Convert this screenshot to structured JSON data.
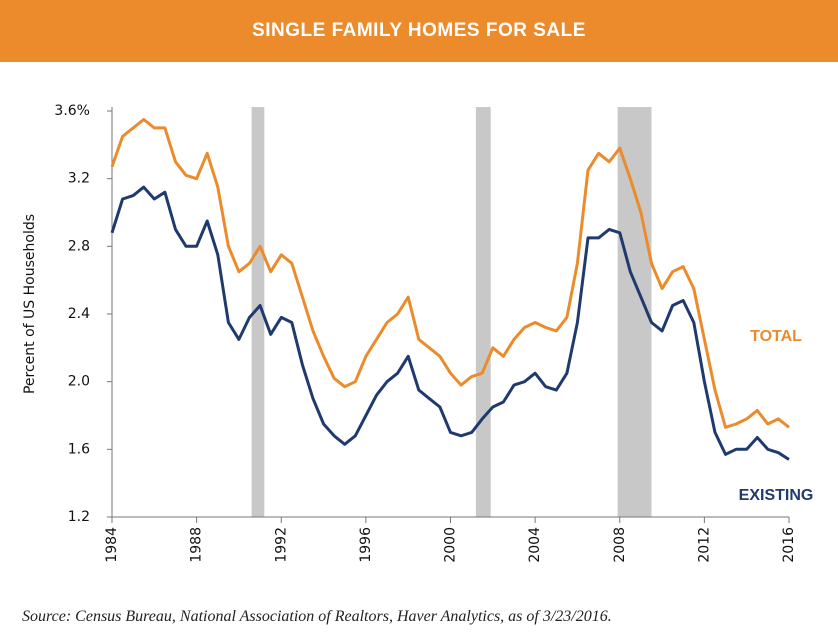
{
  "chart_data": {
    "type": "line",
    "title": "SINGLE FAMILY HOMES FOR SALE",
    "y_label": "Percent of US Households",
    "source": "Source: Census Bureau, National Association of Realtors, Haver Analytics, as of 3/23/2016.",
    "xlim": [
      1984,
      2016
    ],
    "xticks": [
      1984,
      1988,
      1992,
      1996,
      2000,
      2004,
      2008,
      2012,
      2016
    ],
    "ylim": [
      1.2,
      3.6
    ],
    "yticks": [
      1.2,
      1.6,
      {
        "value": 2.0,
        "label": "2.0"
      },
      2.4,
      2.8,
      3.2,
      {
        "value": 3.6,
        "label": "3.6%"
      }
    ],
    "recessions": [
      {
        "start": 1990.6,
        "end": 1991.2
      },
      {
        "start": 2001.2,
        "end": 2001.9
      },
      {
        "start": 2007.9,
        "end": 2009.5
      }
    ],
    "recession_color": "#c8c8c8",
    "x": [
      1984.0,
      1984.5,
      1985.0,
      1985.5,
      1986.0,
      1986.5,
      1987.0,
      1987.5,
      1988.0,
      1988.5,
      1989.0,
      1989.5,
      1990.0,
      1990.5,
      1991.0,
      1991.5,
      1992.0,
      1992.5,
      1993.0,
      1993.5,
      1994.0,
      1994.5,
      1995.0,
      1995.5,
      1996.0,
      1996.5,
      1997.0,
      1997.5,
      1998.0,
      1998.5,
      1999.0,
      1999.5,
      2000.0,
      2000.5,
      2001.0,
      2001.5,
      2002.0,
      2002.5,
      2003.0,
      2003.5,
      2004.0,
      2004.5,
      2005.0,
      2005.5,
      2006.0,
      2006.5,
      2007.0,
      2007.5,
      2008.0,
      2008.5,
      2009.0,
      2009.5,
      2010.0,
      2010.5,
      2011.0,
      2011.5,
      2012.0,
      2012.5,
      2013.0,
      2013.5,
      2014.0,
      2014.5,
      2015.0,
      2015.5,
      2016.0
    ],
    "series": [
      {
        "name": "TOTAL",
        "color": "#ec8b2c",
        "values": [
          3.27,
          3.45,
          3.5,
          3.55,
          3.5,
          3.5,
          3.3,
          3.22,
          3.2,
          3.35,
          3.15,
          2.8,
          2.65,
          2.7,
          2.8,
          2.65,
          2.75,
          2.7,
          2.5,
          2.3,
          2.15,
          2.02,
          1.97,
          2.0,
          2.15,
          2.25,
          2.35,
          2.4,
          2.5,
          2.25,
          2.2,
          2.15,
          2.05,
          1.98,
          2.03,
          2.05,
          2.2,
          2.15,
          2.25,
          2.32,
          2.35,
          2.32,
          2.3,
          2.38,
          2.7,
          3.25,
          3.35,
          3.3,
          3.38,
          3.2,
          3.0,
          2.7,
          2.55,
          2.65,
          2.68,
          2.55,
          2.25,
          1.95,
          1.73,
          1.75,
          1.78,
          1.83,
          1.75,
          1.78,
          1.73
        ]
      },
      {
        "name": "EXISTING",
        "color": "#1f3a6e",
        "values": [
          2.88,
          3.08,
          3.1,
          3.15,
          3.08,
          3.12,
          2.9,
          2.8,
          2.8,
          2.95,
          2.75,
          2.35,
          2.25,
          2.38,
          2.45,
          2.28,
          2.38,
          2.35,
          2.1,
          1.9,
          1.75,
          1.68,
          1.63,
          1.68,
          1.8,
          1.92,
          2.0,
          2.05,
          2.15,
          1.95,
          1.9,
          1.85,
          1.7,
          1.68,
          1.7,
          1.78,
          1.85,
          1.88,
          1.98,
          2.0,
          2.05,
          1.97,
          1.95,
          2.05,
          2.35,
          2.85,
          2.85,
          2.9,
          2.88,
          2.65,
          2.5,
          2.35,
          2.3,
          2.45,
          2.48,
          2.35,
          2.0,
          1.7,
          1.57,
          1.6,
          1.6,
          1.67,
          1.6,
          1.58,
          1.54
        ]
      }
    ]
  }
}
